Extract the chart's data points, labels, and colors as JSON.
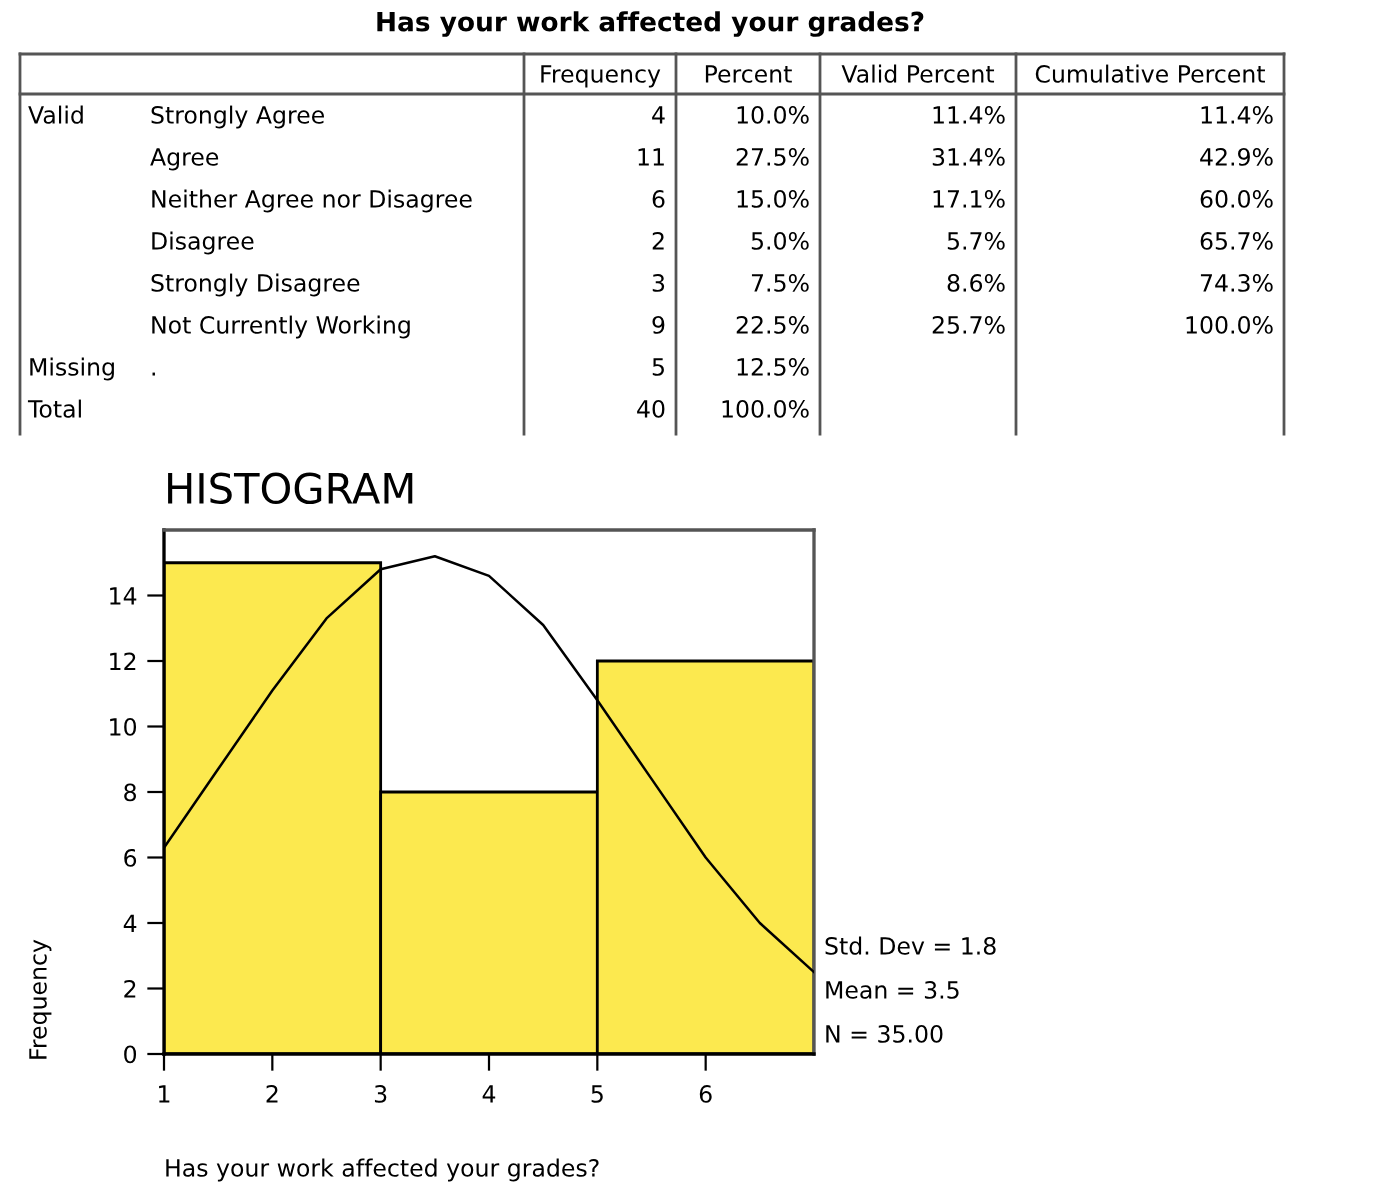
{
  "chart_data": [
    {
      "type": "other",
      "title": "Has your work affected your grades?",
      "categories": [
        "Frequency",
        "Percent",
        "Valid Percent",
        "Cumulative Percent"
      ],
      "y2_categories": [
        "Valid",
        null,
        null,
        null,
        null,
        null,
        "Missing",
        "Total"
      ],
      "y_categories": [
        "Strongly Agree",
        "Agree",
        "Neither Agree nor Disagree",
        "Disagree",
        "Strongly Disagree",
        "Not Currently Working",
        ".",
        null
      ],
      "cell_labels": [
        [
          "4",
          "10.0%",
          "11.4%",
          "11.4%"
        ],
        [
          "11",
          "27.5%",
          "31.4%",
          "42.9%"
        ],
        [
          "6",
          "15.0%",
          "17.1%",
          "60.0%"
        ],
        [
          "2",
          "5.0%",
          "5.7%",
          "65.7%"
        ],
        [
          "3",
          "7.5%",
          "8.6%",
          "74.3%"
        ],
        [
          "9",
          "22.5%",
          "25.7%",
          "100.0%"
        ],
        [
          "5",
          "12.5%",
          null,
          null
        ],
        [
          "40",
          "100.0%",
          null,
          null
        ]
      ]
    },
    {
      "type": "histogram",
      "title": "HISTOGRAM",
      "xlabel": "Has your work affected your grades?",
      "ylabel": "Frequency",
      "bins": [
        1,
        3,
        5,
        7
      ],
      "values": [
        15,
        8,
        12
      ],
      "color": "#fce94f",
      "series": [
        {
          "type": "line",
          "color": "#000000",
          "x": [
            1,
            1.5,
            2,
            2.5,
            3,
            3.5,
            4,
            4.5,
            5,
            5.5,
            6,
            6.5,
            7
          ],
          "values": [
            6.3,
            8.7,
            11.1,
            13.3,
            14.8,
            15.2,
            14.6,
            13.1,
            10.8,
            8.4,
            6.0,
            4.0,
            2.5
          ]
        }
      ],
      "xlim": [
        1,
        7
      ],
      "ylim": [
        0,
        16
      ],
      "xticks": [
        1,
        2,
        3,
        4,
        5,
        6
      ],
      "yticks": [
        0,
        2,
        4,
        6,
        8,
        10,
        12,
        14
      ],
      "annotations": [
        "Std. Dev = 1.8",
        "Mean = 3.5",
        "N = 35.00"
      ]
    }
  ]
}
